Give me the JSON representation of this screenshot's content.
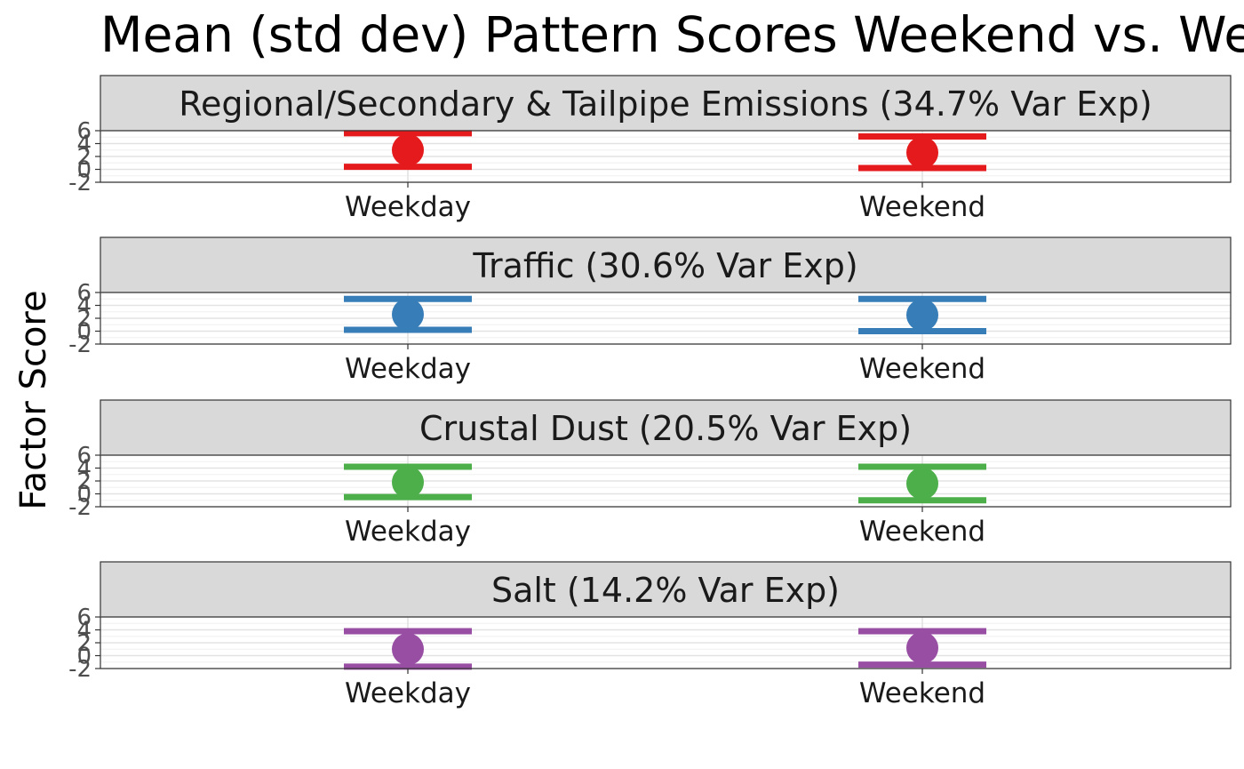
{
  "chart_data": {
    "type": "errorbar",
    "title": "Mean (std dev) Pattern Scores Weekend vs. Weekday",
    "ylabel": "Factor Score",
    "xlabel": "",
    "categories": [
      "Weekday",
      "Weekend"
    ],
    "ylim": [
      -2,
      6
    ],
    "yticks": [
      "-2",
      "0",
      "2",
      "4",
      "6"
    ],
    "grid": true,
    "legend": "none",
    "panels": [
      {
        "label": "Regional/Secondary & Tailpipe Emissions (34.7% Var Exp)",
        "color": "#e41a1c",
        "points": [
          {
            "x": "Weekday",
            "mean": 3.0,
            "lower": 0.4,
            "upper": 5.6
          },
          {
            "x": "Weekend",
            "mean": 2.6,
            "lower": 0.2,
            "upper": 5.1
          }
        ]
      },
      {
        "label": "Traffic (30.6% Var Exp)",
        "color": "#377eb8",
        "points": [
          {
            "x": "Weekday",
            "mean": 2.6,
            "lower": 0.2,
            "upper": 5.0
          },
          {
            "x": "Weekend",
            "mean": 2.5,
            "lower": 0.0,
            "upper": 5.0
          }
        ]
      },
      {
        "label": "Crustal Dust (20.5% Var Exp)",
        "color": "#4daf4a",
        "points": [
          {
            "x": "Weekday",
            "mean": 1.8,
            "lower": -0.5,
            "upper": 4.2
          },
          {
            "x": "Weekend",
            "mean": 1.6,
            "lower": -1.0,
            "upper": 4.2
          }
        ]
      },
      {
        "label": "Salt (14.2% Var Exp)",
        "color": "#984ea3",
        "points": [
          {
            "x": "Weekday",
            "mean": 1.0,
            "lower": -1.7,
            "upper": 3.8
          },
          {
            "x": "Weekend",
            "mean": 1.2,
            "lower": -1.4,
            "upper": 3.8
          }
        ]
      }
    ]
  }
}
